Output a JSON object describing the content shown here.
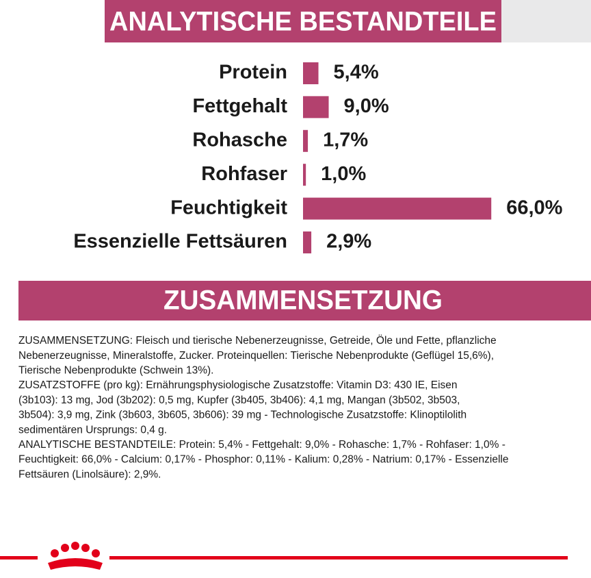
{
  "chart_data": {
    "type": "bar",
    "orientation": "horizontal",
    "title": "ANALYTISCHE BESTANDTEILE",
    "categories": [
      "Protein",
      "Fettgehalt",
      "Rohasche",
      "Rohfaser",
      "Feuchtigkeit",
      "Essenzielle Fettsäuren"
    ],
    "values": [
      5.4,
      9.0,
      1.7,
      1.0,
      66.0,
      2.9
    ],
    "value_labels": [
      "5,4%",
      "9,0%",
      "1,7%",
      "1,0%",
      "66,0%",
      "2,9%"
    ],
    "color": "#b3416e"
  },
  "composition": {
    "heading": "ZUSAMMENSETZUNG",
    "paragraphs": [
      [
        "ZUSAMMENSETZUNG: Fleisch und tierische Nebenerzeugnisse, Getreide, Öle und Fette, pflanzliche",
        "Nebenerzeugnisse, Mineralstoffe, Zucker. Proteinquellen: Tierische Nebenprodukte (Geflügel 15,6%),",
        "Tierische Nebenprodukte (Schwein 13%)."
      ],
      [
        "ZUSATZSTOFFE (pro kg): Ernährungsphysiologische Zusatzstoffe: Vitamin D3: 430 IE, Eisen",
        "(3b103): 13 mg, Jod (3b202): 0,5 mg, Kupfer (3b405, 3b406): 4,1 mg, Mangan (3b502, 3b503,",
        "3b504): 3,9 mg, Zink (3b603, 3b605, 3b606): 39 mg - Technologische Zusatzstoffe: Klinoptilolith",
        "sedimentären Ursprungs: 0,4 g."
      ],
      [
        "ANALYTISCHE BESTANDTEILE: Protein: 5,4% - Fettgehalt: 9,0% - Rohasche: 1,7% - Rohfaser: 1,0% -",
        "Feuchtigkeit: 66,0% - Calcium: 0,17% - Phosphor: 0,11% - Kalium: 0,28% - Natrium: 0,17% - Essenzielle",
        "Fettsäuren (Linolsäure): 2,9%."
      ]
    ]
  }
}
